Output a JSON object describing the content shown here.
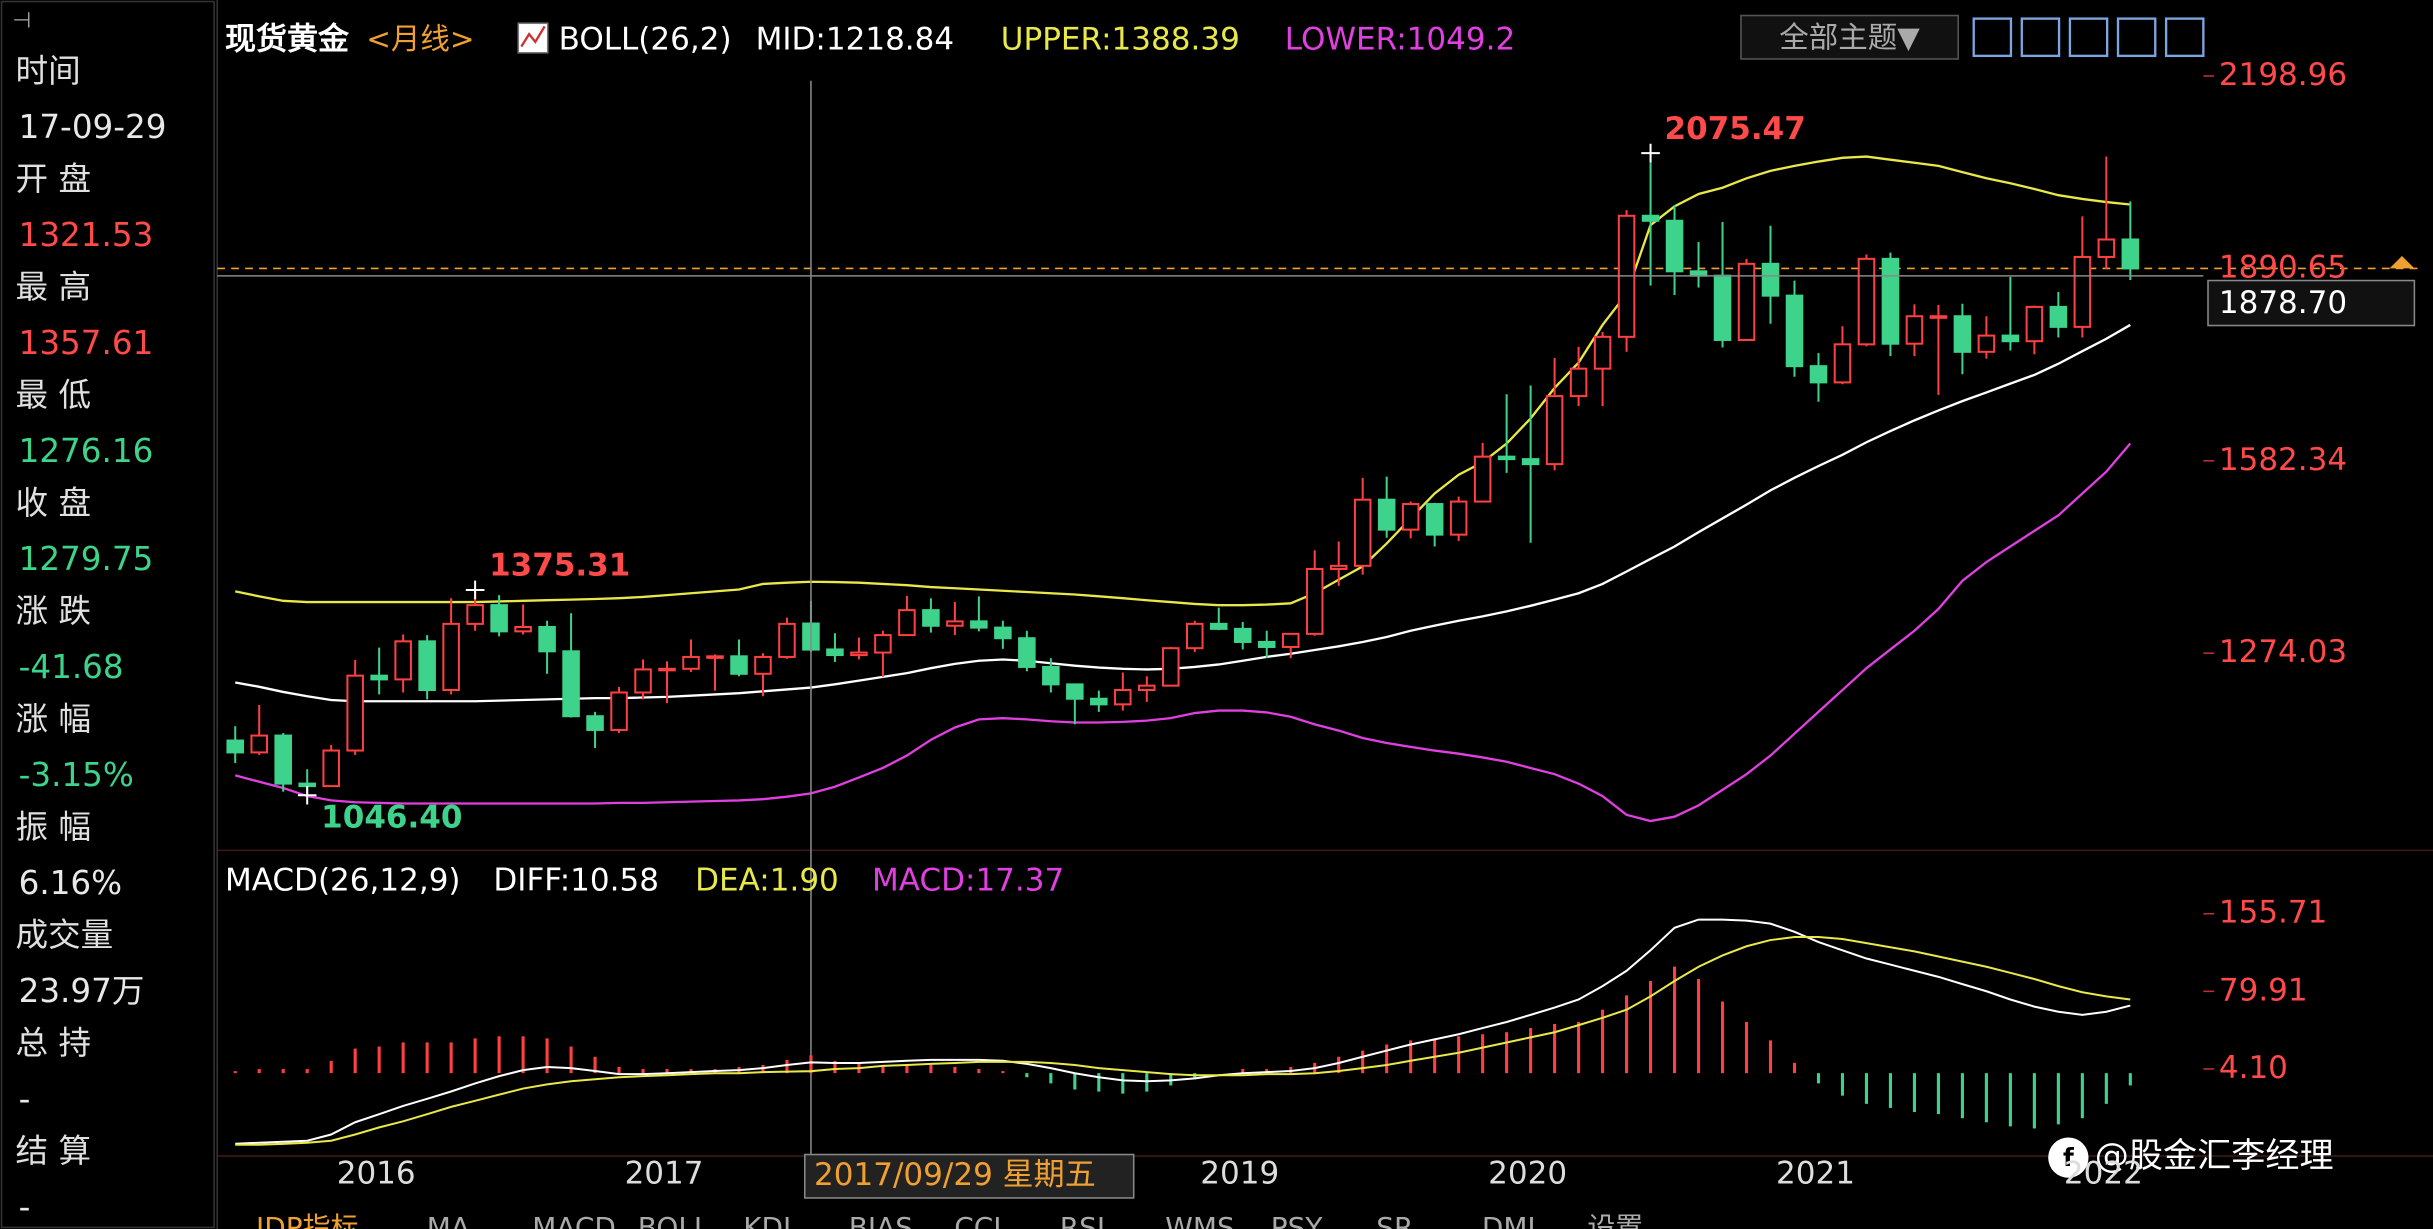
{
  "sidebar": [
    {
      "label": "时间",
      "value": "17-09-29",
      "color": "#e8e8e8"
    },
    {
      "label": "开 盘",
      "value": "1321.53",
      "color": "#ff4a4a"
    },
    {
      "label": "最 高",
      "value": "1357.61",
      "color": "#ff4a4a"
    },
    {
      "label": "最 低",
      "value": "1276.16",
      "color": "#3ed38a"
    },
    {
      "label": "收 盘",
      "value": "1279.75",
      "color": "#3ed38a"
    },
    {
      "label": "涨 跌",
      "value": "-41.68",
      "color": "#3ed38a"
    },
    {
      "label": "涨 幅",
      "value": "-3.15%",
      "color": "#3ed38a"
    },
    {
      "label": "振 幅",
      "value": "6.16%",
      "color": "#e8e8e8"
    },
    {
      "label": "成交量",
      "value": "23.97万",
      "color": "#e8e8e8"
    },
    {
      "label": "总 持",
      "value": "-",
      "color": "#e8e8e8"
    },
    {
      "label": "结 算",
      "value": "-",
      "color": "#e8e8e8"
    }
  ],
  "toolbar": {
    "theme_button": "全部主题▼"
  },
  "tabs": [
    "JDP指标",
    "MA",
    "MACD",
    "BOLL",
    "KDJ",
    "BIAS",
    "CCI",
    "RSI",
    "WMS",
    "PSY",
    "SR",
    "DMI",
    "设置"
  ],
  "watermark": "@股金汇李经理",
  "chart_data": {
    "type": "candlestick",
    "title": "现货黄金",
    "period": "<月线>",
    "indicator": "BOLL(26,2)",
    "up_color": "#ff4040",
    "down_color": "#3ed38a",
    "categories": [
      null,
      null,
      null,
      null,
      "2016",
      null,
      null,
      null,
      null,
      null,
      null,
      null,
      null,
      null,
      null,
      null,
      "2017",
      null,
      null,
      null,
      null,
      null,
      null,
      null,
      null,
      null,
      null,
      null,
      null,
      null,
      null,
      null,
      null,
      null,
      null,
      null,
      null,
      null,
      null,
      null,
      "2019",
      null,
      null,
      null,
      null,
      null,
      null,
      null,
      null,
      null,
      null,
      null,
      "2020",
      null,
      null,
      null,
      null,
      null,
      null,
      null,
      null,
      null,
      null,
      null,
      "2021",
      null,
      null,
      null,
      null,
      null,
      null,
      null,
      null,
      null,
      null,
      null,
      "2022",
      null,
      null,
      null
    ],
    "ohlc": [
      [
        1134,
        1157,
        1098,
        1115
      ],
      [
        1115,
        1191,
        1111,
        1142
      ],
      [
        1142,
        1146,
        1052,
        1065
      ],
      [
        1065,
        1088,
        1046.4,
        1061
      ],
      [
        1061,
        1127,
        1062,
        1118
      ],
      [
        1118,
        1263,
        1111,
        1238
      ],
      [
        1238,
        1283,
        1208,
        1232
      ],
      [
        1232,
        1304,
        1211,
        1293
      ],
      [
        1293,
        1303,
        1200,
        1215
      ],
      [
        1215,
        1362,
        1208,
        1321
      ],
      [
        1321,
        1375.31,
        1310,
        1351
      ],
      [
        1351,
        1367,
        1301,
        1309
      ],
      [
        1309,
        1352,
        1304,
        1316
      ],
      [
        1316,
        1326,
        1241,
        1277
      ],
      [
        1277,
        1338,
        1171,
        1173
      ],
      [
        1173,
        1180,
        1122,
        1151
      ],
      [
        1151,
        1220,
        1146,
        1211
      ],
      [
        1211,
        1264,
        1200,
        1248
      ],
      [
        1248,
        1261,
        1194,
        1249
      ],
      [
        1249,
        1296,
        1244,
        1268
      ],
      [
        1268,
        1272,
        1214,
        1269
      ],
      [
        1269,
        1296,
        1237,
        1241
      ],
      [
        1241,
        1274,
        1205,
        1268
      ],
      [
        1268,
        1331,
        1265,
        1321
      ],
      [
        1321.53,
        1357.61,
        1276.16,
        1279.75
      ],
      [
        1280,
        1306,
        1260,
        1271
      ],
      [
        1271,
        1299,
        1264,
        1275
      ],
      [
        1275,
        1310,
        1236,
        1303
      ],
      [
        1303,
        1366,
        1302,
        1343
      ],
      [
        1343,
        1362,
        1307,
        1318
      ],
      [
        1318,
        1356,
        1303,
        1325
      ],
      [
        1325,
        1365,
        1309,
        1315
      ],
      [
        1315,
        1326,
        1281,
        1298
      ],
      [
        1298,
        1310,
        1245,
        1252
      ],
      [
        1252,
        1266,
        1211,
        1224
      ],
      [
        1224,
        1225,
        1160,
        1201
      ],
      [
        1201,
        1214,
        1180,
        1192
      ],
      [
        1192,
        1243,
        1182,
        1215
      ],
      [
        1215,
        1237,
        1196,
        1222
      ],
      [
        1222,
        1284,
        1221,
        1282
      ],
      [
        1282,
        1326,
        1276,
        1321
      ],
      [
        1321,
        1347,
        1311,
        1313
      ],
      [
        1313,
        1324,
        1280,
        1292
      ],
      [
        1292,
        1310,
        1266,
        1284
      ],
      [
        1284,
        1306,
        1266,
        1305
      ],
      [
        1305,
        1439,
        1302,
        1409
      ],
      [
        1409,
        1453,
        1382,
        1414
      ],
      [
        1414,
        1555,
        1400,
        1520
      ],
      [
        1520,
        1557,
        1459,
        1472
      ],
      [
        1472,
        1517,
        1458,
        1513
      ],
      [
        1513,
        1515,
        1445,
        1464
      ],
      [
        1464,
        1525,
        1454,
        1517
      ],
      [
        1517,
        1611,
        1517,
        1589
      ],
      [
        1589,
        1689,
        1563,
        1585
      ],
      [
        1585,
        1703,
        1451,
        1577
      ],
      [
        1577,
        1747,
        1567,
        1686
      ],
      [
        1686,
        1765,
        1670,
        1730
      ],
      [
        1730,
        1789,
        1670,
        1781
      ],
      [
        1781,
        1984,
        1757,
        1975
      ],
      [
        1975,
        2075.47,
        1863,
        1967
      ],
      [
        1967,
        1992,
        1848,
        1886
      ],
      [
        1886,
        1933,
        1860,
        1879
      ],
      [
        1879,
        1965,
        1764,
        1776
      ],
      [
        1776,
        1906,
        1775,
        1898
      ],
      [
        1898,
        1959,
        1802,
        1847
      ],
      [
        1847,
        1871,
        1717,
        1734
      ],
      [
        1734,
        1755,
        1677,
        1708
      ],
      [
        1708,
        1798,
        1705,
        1769
      ],
      [
        1769,
        1913,
        1766,
        1906
      ],
      [
        1906,
        1916,
        1750,
        1770
      ],
      [
        1770,
        1833,
        1750,
        1814
      ],
      [
        1814,
        1832,
        1688,
        1814
      ],
      [
        1814,
        1834,
        1721,
        1757
      ],
      [
        1757,
        1814,
        1746,
        1783
      ],
      [
        1783,
        1877,
        1759,
        1774
      ],
      [
        1774,
        1831,
        1753,
        1829
      ],
      [
        1829,
        1853,
        1780,
        1797
      ],
      [
        1797,
        1974,
        1780,
        1909
      ],
      [
        1909,
        2070,
        1890,
        1937
      ],
      [
        1937,
        1998,
        1872,
        1890.65
      ]
    ],
    "series": [
      {
        "name": "MID:1218.84",
        "color": "#ffffff",
        "values": [
          1227,
          1220,
          1212,
          1205,
          1199,
          1197,
          1197,
          1197,
          1197,
          1197,
          1197,
          1198,
          1199,
          1200,
          1201,
          1202,
          1202,
          1203,
          1204,
          1206,
          1208,
          1210,
          1213,
          1216,
          1218.84,
          1224,
          1230,
          1236,
          1242,
          1250,
          1257,
          1262,
          1264,
          1262,
          1258,
          1254,
          1251,
          1249,
          1248,
          1249,
          1252,
          1256,
          1262,
          1268,
          1273,
          1279,
          1285,
          1292,
          1300,
          1310,
          1318,
          1326,
          1333,
          1341,
          1350,
          1360,
          1370,
          1385,
          1405,
          1425,
          1445,
          1468,
          1490,
          1512,
          1535,
          1555,
          1574,
          1592,
          1612,
          1630,
          1647,
          1663,
          1678,
          1692,
          1706,
          1720,
          1738,
          1758,
          1778,
          1800
        ]
      },
      {
        "name": "UPPER:1388.39",
        "color": "#e8e84a",
        "values": [
          1373,
          1365,
          1358,
          1356,
          1356,
          1356,
          1356,
          1356,
          1356,
          1356,
          1356,
          1357,
          1358,
          1359,
          1360,
          1361,
          1362,
          1364,
          1367,
          1370,
          1373,
          1376,
          1385,
          1387,
          1388.39,
          1388,
          1387,
          1385,
          1383,
          1380,
          1378,
          1376,
          1374,
          1372,
          1370,
          1368,
          1365,
          1362,
          1359,
          1356,
          1353,
          1351,
          1351,
          1352,
          1354,
          1370,
          1392,
          1413,
          1450,
          1490,
          1530,
          1560,
          1580,
          1610,
          1650,
          1699,
          1740,
          1800,
          1850,
          1960,
          1990,
          2010,
          2020,
          2035,
          2047,
          2055,
          2062,
          2068,
          2070,
          2065,
          2060,
          2055,
          2045,
          2035,
          2027,
          2018,
          2008,
          2002,
          1997,
          1993
        ]
      },
      {
        "name": "LOWER:1049.2",
        "color": "#e040e0",
        "values": [
          1078,
          1068,
          1058,
          1045,
          1038,
          1035,
          1034,
          1033,
          1033,
          1033,
          1033,
          1033,
          1033,
          1033,
          1033,
          1033,
          1034,
          1034,
          1035,
          1036,
          1037,
          1038,
          1040,
          1044,
          1049.2,
          1060,
          1075,
          1090,
          1110,
          1135,
          1155,
          1168,
          1170,
          1168,
          1165,
          1163,
          1163,
          1164,
          1166,
          1170,
          1178,
          1182,
          1182,
          1179,
          1172,
          1160,
          1150,
          1138,
          1130,
          1124,
          1118,
          1113,
          1107,
          1100,
          1090,
          1080,
          1065,
          1045,
          1015,
          1005,
          1012,
          1030,
          1055,
          1080,
          1110,
          1145,
          1180,
          1215,
          1250,
          1280,
          1310,
          1345,
          1390,
          1420,
          1445,
          1470,
          1495,
          1530,
          1565,
          1610
        ]
      }
    ],
    "ylim": [
      958,
      2286
    ],
    "yticks": [
      1274.03,
      1582.34,
      2198.96
    ],
    "last_price": 1890.65,
    "crosshair_price": {
      "value": 1878.7,
      "label": "1878.70"
    },
    "crosshair_date": "2017/09/29 星期五",
    "annotations": [
      {
        "value": 2075.47,
        "label": "2075.47",
        "at": "high",
        "color": "#ff4a4a"
      },
      {
        "value": 1375.31,
        "label": "1375.31",
        "at": "high",
        "color": "#ff4a4a"
      },
      {
        "value": 1046.4,
        "label": "1046.40",
        "at": "low",
        "color": "#3ed38a"
      }
    ],
    "macd_panel": {
      "type": "macd",
      "indicator": "MACD(26,12,9)",
      "ylim": [
        -81,
        207
      ],
      "yticks": [
        155.71,
        79.91,
        {
          "value": 4.1,
          "label": "4.10"
        }
      ],
      "series": [
        {
          "name": "DIFF:10.58",
          "color": "#ffffff",
          "values": [
            -69,
            -68,
            -67,
            -66,
            -60,
            -48,
            -40,
            -32,
            -25,
            -18,
            -10,
            -3,
            3,
            6,
            5,
            2,
            -1,
            -1,
            0,
            1,
            2,
            3,
            5,
            8,
            10.58,
            10,
            10,
            11,
            12,
            13,
            13,
            13,
            12,
            9,
            5,
            0,
            -4,
            -7,
            -8,
            -7,
            -5,
            -2,
            0,
            1,
            2,
            5,
            10,
            16,
            22,
            28,
            33,
            38,
            44,
            50,
            57,
            64,
            72,
            85,
            100,
            120,
            142,
            150,
            150,
            149,
            146,
            138,
            128,
            120,
            112,
            106,
            100,
            94,
            87,
            80,
            72,
            65,
            60,
            57,
            60,
            66
          ]
        },
        {
          "name": "DEA:1.90",
          "color": "#e8e84a",
          "values": [
            -70,
            -70,
            -69,
            -68,
            -66,
            -60,
            -53,
            -47,
            -40,
            -33,
            -27,
            -21,
            -15,
            -11,
            -8,
            -6,
            -4,
            -3,
            -2,
            -1,
            0,
            0,
            1,
            1.5,
            1.9,
            4,
            5,
            7,
            8,
            9,
            10,
            11,
            11,
            11,
            10,
            8,
            5,
            3,
            1,
            -1,
            -2,
            -2,
            -2,
            -1,
            -1,
            0,
            2,
            5,
            8,
            12,
            16,
            20,
            25,
            30,
            35,
            40,
            47,
            54,
            62,
            75,
            90,
            104,
            115,
            124,
            130,
            133,
            133,
            131,
            127,
            123,
            119,
            114,
            109,
            104,
            98,
            92,
            85,
            79,
            75,
            72
          ]
        },
        {
          "name": "MACD:17.37",
          "color": "#e040e0",
          "values": [
            2,
            4,
            4,
            4,
            12,
            24,
            26,
            30,
            30,
            30,
            34,
            36,
            36,
            34,
            26,
            16,
            6,
            4,
            4,
            4,
            4,
            6,
            8,
            13,
            17.37,
            12,
            10,
            8,
            8,
            8,
            6,
            4,
            2,
            -4,
            -10,
            -16,
            -18,
            -20,
            -18,
            -12,
            -6,
            0,
            4,
            4,
            6,
            10,
            16,
            22,
            28,
            32,
            34,
            36,
            38,
            40,
            44,
            48,
            50,
            62,
            76,
            90,
            104,
            92,
            70,
            50,
            32,
            10,
            -10,
            -22,
            -30,
            -34,
            -38,
            -40,
            -44,
            -48,
            -52,
            -54,
            -50,
            -44,
            -30,
            -12
          ]
        }
      ]
    }
  }
}
